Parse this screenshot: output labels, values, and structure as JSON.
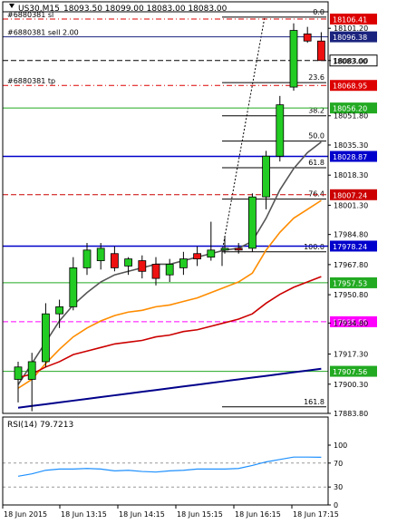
{
  "header": {
    "symbol": "US30,M15",
    "ohlc": "18093.50 18099.00 18083.00 18083.00"
  },
  "orders": [
    {
      "label": "#6880381 sl",
      "price": 18106.41,
      "price_label": "18106.41",
      "color": "#dd0000"
    },
    {
      "label": "#6880381 sell 2.00",
      "price": 18096.38,
      "price_label": "18096.38",
      "color": "#1a237e"
    },
    {
      "label": "#6880381 tp",
      "price": 18068.95,
      "price_label": "18068.95",
      "color": "#dd0000"
    }
  ],
  "chart_data": [
    {
      "type": "candlestick",
      "title": "US30,M15",
      "ylim": [
        17883.8,
        18110.0
      ],
      "y_ticks": [
        "18101.20",
        "18083.00",
        "18051.80",
        "18035.30",
        "18018.30",
        "18001.30",
        "17984.80",
        "17967.80",
        "17950.80",
        "17934.80",
        "17917.30",
        "17900.30",
        "17883.80"
      ],
      "x_ticks": [
        "18 Jun 2015",
        "18 Jun 13:15",
        "18 Jun 14:15",
        "18 Jun 15:15",
        "18 Jun 16:15",
        "18 Jun 17:15"
      ],
      "candles": [
        {
          "o": 17903,
          "h": 17913,
          "l": 17890,
          "c": 17910
        },
        {
          "o": 17903,
          "h": 17918,
          "l": 17885,
          "c": 17913
        },
        {
          "o": 17913,
          "h": 17946,
          "l": 17910,
          "c": 17940
        },
        {
          "o": 17940,
          "h": 17948,
          "l": 17932,
          "c": 17944
        },
        {
          "o": 17944,
          "h": 17972,
          "l": 17942,
          "c": 17966
        },
        {
          "o": 17966,
          "h": 17980,
          "l": 17962,
          "c": 17976
        },
        {
          "o": 17970,
          "h": 17980,
          "l": 17965,
          "c": 17977
        },
        {
          "o": 17974,
          "h": 17978,
          "l": 17964,
          "c": 17966
        },
        {
          "o": 17967,
          "h": 17972,
          "l": 17962,
          "c": 17971
        },
        {
          "o": 17970,
          "h": 17973,
          "l": 17960,
          "c": 17964
        },
        {
          "o": 17968,
          "h": 17972,
          "l": 17956,
          "c": 17960
        },
        {
          "o": 17962,
          "h": 17971,
          "l": 17958,
          "c": 17968
        },
        {
          "o": 17966,
          "h": 17975,
          "l": 17962,
          "c": 17971
        },
        {
          "o": 17974,
          "h": 17978,
          "l": 17967,
          "c": 17971
        },
        {
          "o": 17972,
          "h": 17992,
          "l": 17970,
          "c": 17976
        },
        {
          "o": 17976,
          "h": 17984,
          "l": 17974,
          "c": 17977
        },
        {
          "o": 17977,
          "h": 17980,
          "l": 17974,
          "c": 17976
        },
        {
          "o": 17977,
          "h": 18008,
          "l": 17975,
          "c": 18006
        },
        {
          "o": 18006,
          "h": 18032,
          "l": 17999,
          "c": 18029
        },
        {
          "o": 18029,
          "h": 18063,
          "l": 18026,
          "c": 18058
        },
        {
          "o": 18068,
          "h": 18104,
          "l": 18066,
          "c": 18100
        },
        {
          "o": 18098,
          "h": 18102,
          "l": 18093,
          "c": 18094
        },
        {
          "o": 18094,
          "h": 18099,
          "l": 18083,
          "c": 18083
        }
      ],
      "series": [
        {
          "color": "#555555",
          "values": [
            17900,
            17912,
            17924,
            17936,
            17945,
            17952,
            17958,
            17962,
            17964,
            17966,
            17968,
            17968,
            17970,
            17972,
            17974,
            17976,
            17977,
            17981,
            17994,
            18010,
            18022,
            18031,
            18037
          ]
        },
        {
          "color": "#ff8c00",
          "values": [
            17898,
            17903,
            17912,
            17920,
            17927,
            17932,
            17936,
            17939,
            17941,
            17942,
            17944,
            17945,
            17947,
            17949,
            17952,
            17955,
            17958,
            17963,
            17976,
            17986,
            17994,
            17999,
            18004
          ]
        },
        {
          "color": "#cc0000",
          "values": [
            17904,
            17906,
            17910,
            17913,
            17917,
            17919,
            17921,
            17923,
            17924,
            17925,
            17927,
            17928,
            17930,
            17931,
            17933,
            17935,
            17937,
            17940,
            17946,
            17951,
            17955,
            17958,
            17961
          ]
        },
        {
          "color": "#00008b",
          "values": [
            17887,
            17888,
            17889,
            17890,
            17891,
            17892,
            17893,
            17894,
            17895,
            17896,
            17897,
            17898,
            17899,
            17900,
            17901,
            17902,
            17903,
            17904,
            17905,
            17906,
            17907,
            17908,
            17909
          ]
        }
      ],
      "fibonacci": [
        {
          "label": "0.0",
          "price": 18107.5
        },
        {
          "label": "23.6",
          "price": 18070.5
        },
        {
          "label": "38.2",
          "price": 18051.8
        },
        {
          "label": "50.0",
          "price": 18037.5
        },
        {
          "label": "61.8",
          "price": 18022.5
        },
        {
          "label": "76.4",
          "price": 18004.8
        },
        {
          "label": "100.0",
          "price": 17975.0
        },
        {
          "label": "161.8",
          "price": 17887.5
        }
      ],
      "levels": [
        {
          "price": 18083.0,
          "label": "18083.00",
          "color": "#000000",
          "style": "dash"
        },
        {
          "price": 18056.2,
          "label": "18056.20",
          "color": "#22aa22",
          "style": "solid"
        },
        {
          "price": 18028.87,
          "label": "18028.87",
          "color": "#0000cc",
          "style": "solid"
        },
        {
          "price": 18007.24,
          "label": "18007.24",
          "color": "#cc0000",
          "style": "dash"
        },
        {
          "price": 17978.24,
          "label": "17978.24",
          "color": "#0000cc",
          "style": "solid"
        },
        {
          "price": 17957.53,
          "label": "17957.53",
          "color": "#22aa22",
          "style": "solid"
        },
        {
          "price": 17935.55,
          "label": "17935.55",
          "color": "#ff00ff",
          "style": "dash"
        },
        {
          "price": 17907.56,
          "label": "17907.56",
          "color": "#22aa22",
          "style": "solid"
        }
      ]
    },
    {
      "type": "line",
      "title": "RSI(14) 79.7213",
      "ylim": [
        0,
        100
      ],
      "y_ticks": [
        "100",
        "70",
        "30",
        "0"
      ],
      "series": [
        {
          "name": "RSI(14)",
          "color": "#1e90ff",
          "values": [
            48,
            52,
            58,
            60,
            60,
            61,
            60,
            57,
            58,
            56,
            55,
            57,
            58,
            60,
            60,
            60,
            61,
            66,
            72,
            76,
            80,
            80,
            79.7
          ]
        }
      ]
    }
  ]
}
